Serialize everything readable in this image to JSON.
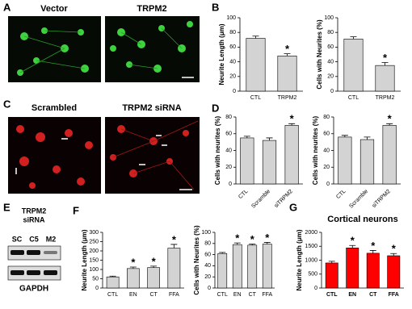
{
  "panel_labels": [
    "A",
    "B",
    "C",
    "D",
    "E",
    "F",
    "G"
  ],
  "images": [
    {
      "label": "Vector"
    },
    {
      "label": "TRPM2"
    },
    {
      "label": "Scrambled"
    },
    {
      "label": "TRPM2 siRNA"
    }
  ],
  "blot": {
    "title": [
      "TRPM2",
      "siRNA"
    ],
    "lanes": [
      "SC",
      "C5",
      "M2"
    ],
    "loading": "GAPDH"
  },
  "chart_data": [
    {
      "type": "bar",
      "y_label": "Neurite Length (μm)",
      "categories": [
        "CTL",
        "TRPM2"
      ],
      "values": [
        72,
        48
      ],
      "errors": [
        3,
        3
      ],
      "significance": [
        null,
        "*"
      ],
      "color": "#d3d3d3",
      "ylim": [
        0,
        100
      ],
      "yticks": [
        0,
        20,
        40,
        60,
        80,
        100
      ]
    },
    {
      "type": "bar",
      "y_label": "Cells with Neurites (%)",
      "categories": [
        "CTL",
        "TRPM2"
      ],
      "values": [
        71,
        35
      ],
      "errors": [
        3,
        4
      ],
      "significance": [
        null,
        "*"
      ],
      "color": "#d3d3d3",
      "ylim": [
        0,
        100
      ],
      "yticks": [
        0,
        20,
        40,
        60,
        80,
        100
      ]
    },
    {
      "type": "bar",
      "y_label": "Cells with neurites (%)",
      "categories": [
        "CTL",
        "Scramble",
        "siTRPM2"
      ],
      "values": [
        55,
        52,
        70
      ],
      "errors": [
        2,
        3,
        2
      ],
      "significance": [
        null,
        null,
        "*"
      ],
      "color": "#d3d3d3",
      "ylim": [
        0,
        80
      ],
      "yticks": [
        0,
        20,
        40,
        60,
        80
      ]
    },
    {
      "type": "bar",
      "y_label": "Cells with neurites (%)",
      "categories": [
        "CTL",
        "Scramble",
        "siTRPM2"
      ],
      "values": [
        56,
        53,
        70
      ],
      "errors": [
        2,
        3,
        2
      ],
      "significance": [
        null,
        null,
        "*"
      ],
      "color": "#d3d3d3",
      "ylim": [
        0,
        80
      ],
      "yticks": [
        0,
        20,
        40,
        60,
        80
      ]
    },
    {
      "type": "bar",
      "y_label": "Neurite Length (μm)",
      "categories": [
        "CTL",
        "EN",
        "CT",
        "FFA"
      ],
      "values": [
        60,
        105,
        110,
        215
      ],
      "errors": [
        4,
        8,
        8,
        20
      ],
      "significance": [
        null,
        "*",
        "*",
        "*"
      ],
      "color": "#d3d3d3",
      "ylim": [
        0,
        300
      ],
      "yticks": [
        0,
        50,
        100,
        150,
        200,
        250,
        300
      ]
    },
    {
      "type": "bar",
      "y_label": "Cells with Neurites (%)",
      "categories": [
        "CTL",
        "EN",
        "CT",
        "FFA"
      ],
      "values": [
        62,
        78,
        77,
        79
      ],
      "errors": [
        2,
        3,
        2,
        3
      ],
      "significance": [
        null,
        "*",
        "*",
        "*"
      ],
      "color": "#d3d3d3",
      "ylim": [
        0,
        100
      ],
      "yticks": [
        0,
        20,
        40,
        60,
        80,
        100
      ]
    },
    {
      "type": "bar",
      "title": "Cortical neurons",
      "y_label": "Neurite Length (μm)",
      "categories": [
        "CTL",
        "EN",
        "CT",
        "FFA"
      ],
      "values": [
        900,
        1440,
        1250,
        1160
      ],
      "errors": [
        60,
        90,
        100,
        80
      ],
      "significance": [
        null,
        "*",
        "*",
        "*"
      ],
      "color": "#ff0000",
      "ylim": [
        0,
        2000
      ],
      "yticks": [
        0,
        500,
        1000,
        1500,
        2000
      ]
    }
  ]
}
